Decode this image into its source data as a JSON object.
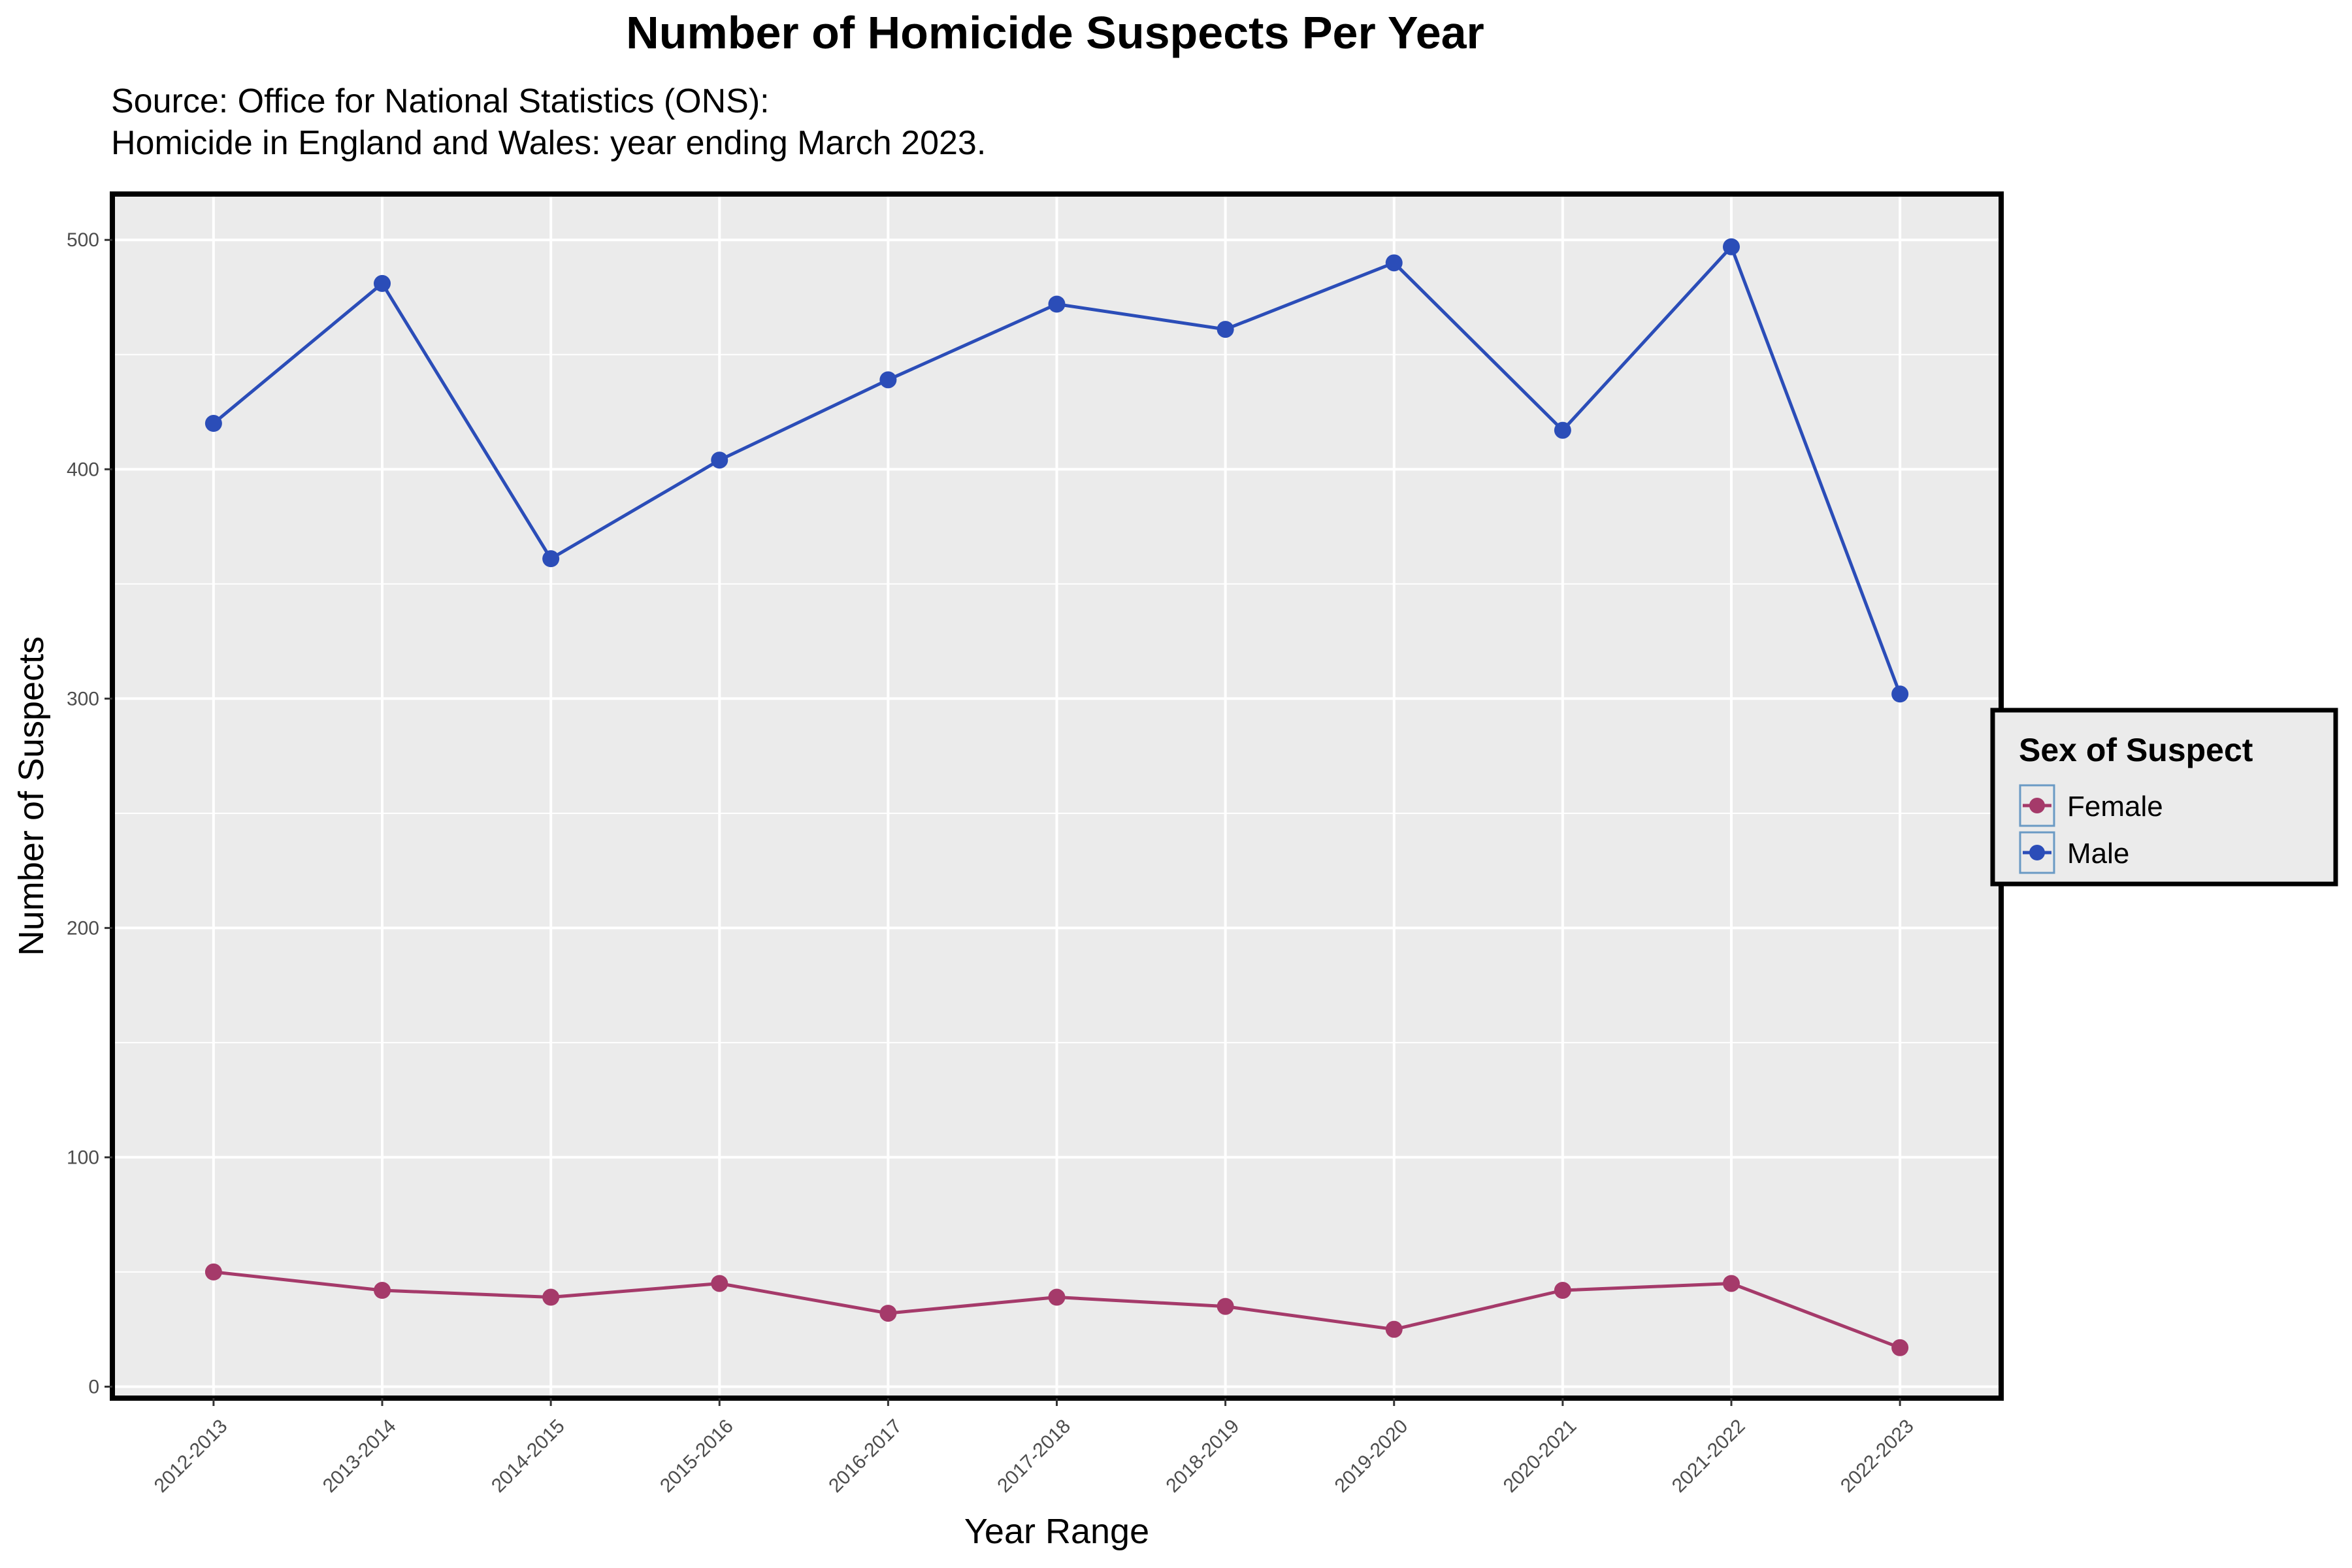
{
  "chart_data": {
    "type": "line",
    "title": "Number of Homicide Suspects Per Year",
    "subtitle_lines": [
      "Source: Office for National Statistics (ONS):",
      "Homicide in England and Wales: year ending March 2023."
    ],
    "xlabel": "Year Range",
    "ylabel": "Number of Suspects",
    "categories": [
      "2012-2013",
      "2013-2014",
      "2014-2015",
      "2015-2016",
      "2016-2017",
      "2017-2018",
      "2018-2019",
      "2019-2020",
      "2020-2021",
      "2021-2022",
      "2022-2023"
    ],
    "series": [
      {
        "name": "Female",
        "color": "#a53a6a",
        "values": [
          50,
          42,
          39,
          45,
          32,
          39,
          35,
          25,
          42,
          45,
          17
        ]
      },
      {
        "name": "Male",
        "color": "#2b4db8",
        "values": [
          420,
          481,
          361,
          404,
          439,
          472,
          461,
          490,
          417,
          497,
          302
        ]
      }
    ],
    "ylim": [
      -5,
      520
    ],
    "y_ticks": [
      0,
      100,
      200,
      300,
      400,
      500
    ],
    "grid": true,
    "panel_background": "#ebebeb",
    "legend": {
      "title": "Sex of Suspect",
      "position": "right",
      "key_border_color": "#6a9ac4"
    }
  }
}
